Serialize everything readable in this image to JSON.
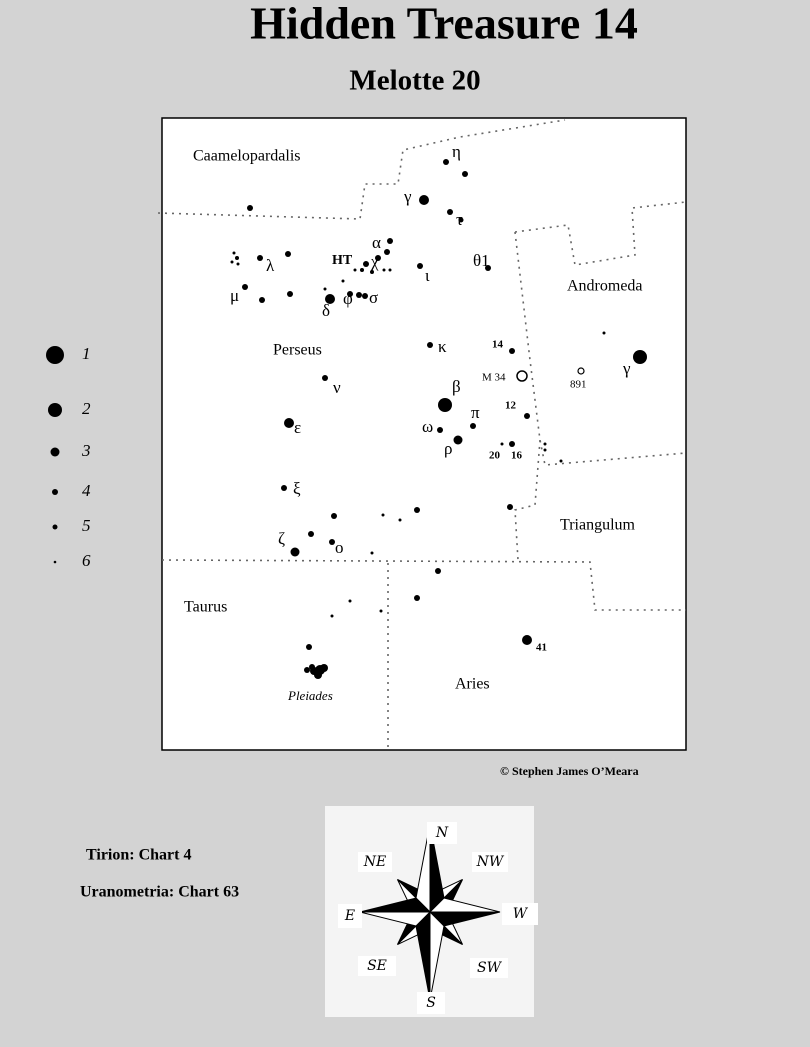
{
  "header": {
    "title": "Hidden Treasure 14",
    "subtitle": "Melotte  20"
  },
  "constellations": [
    "Caamelopardalis",
    "Perseus",
    "Andromeda",
    "Triangulum",
    "Taurus",
    "Aries"
  ],
  "objects": [
    "Pleiades",
    "HT",
    "M 34",
    "891"
  ],
  "star_labels": [
    "η",
    "γ",
    "τ",
    "α",
    "χ",
    "ι",
    "θ1",
    "λ",
    "μ",
    "δ",
    "φ",
    "σ",
    "κ",
    "ν",
    "β",
    "π",
    "ω",
    "ρ",
    "ε",
    "ξ",
    "ζ",
    "ο",
    "γ"
  ],
  "numbered_stars": [
    "14",
    "12",
    "20",
    "16",
    "41"
  ],
  "legend": {
    "magnitudes": [
      "1",
      "2",
      "3",
      "4",
      "5",
      "6"
    ]
  },
  "credit": "© Stephen James O’Meara",
  "references": [
    "Tirion: Chart 4",
    "Uranometria: Chart 63"
  ],
  "compass": {
    "N": "N",
    "NE": "NE",
    "NW": "NW",
    "E": "E",
    "W": "W",
    "SE": "SE",
    "SW": "SW",
    "S": "S"
  }
}
